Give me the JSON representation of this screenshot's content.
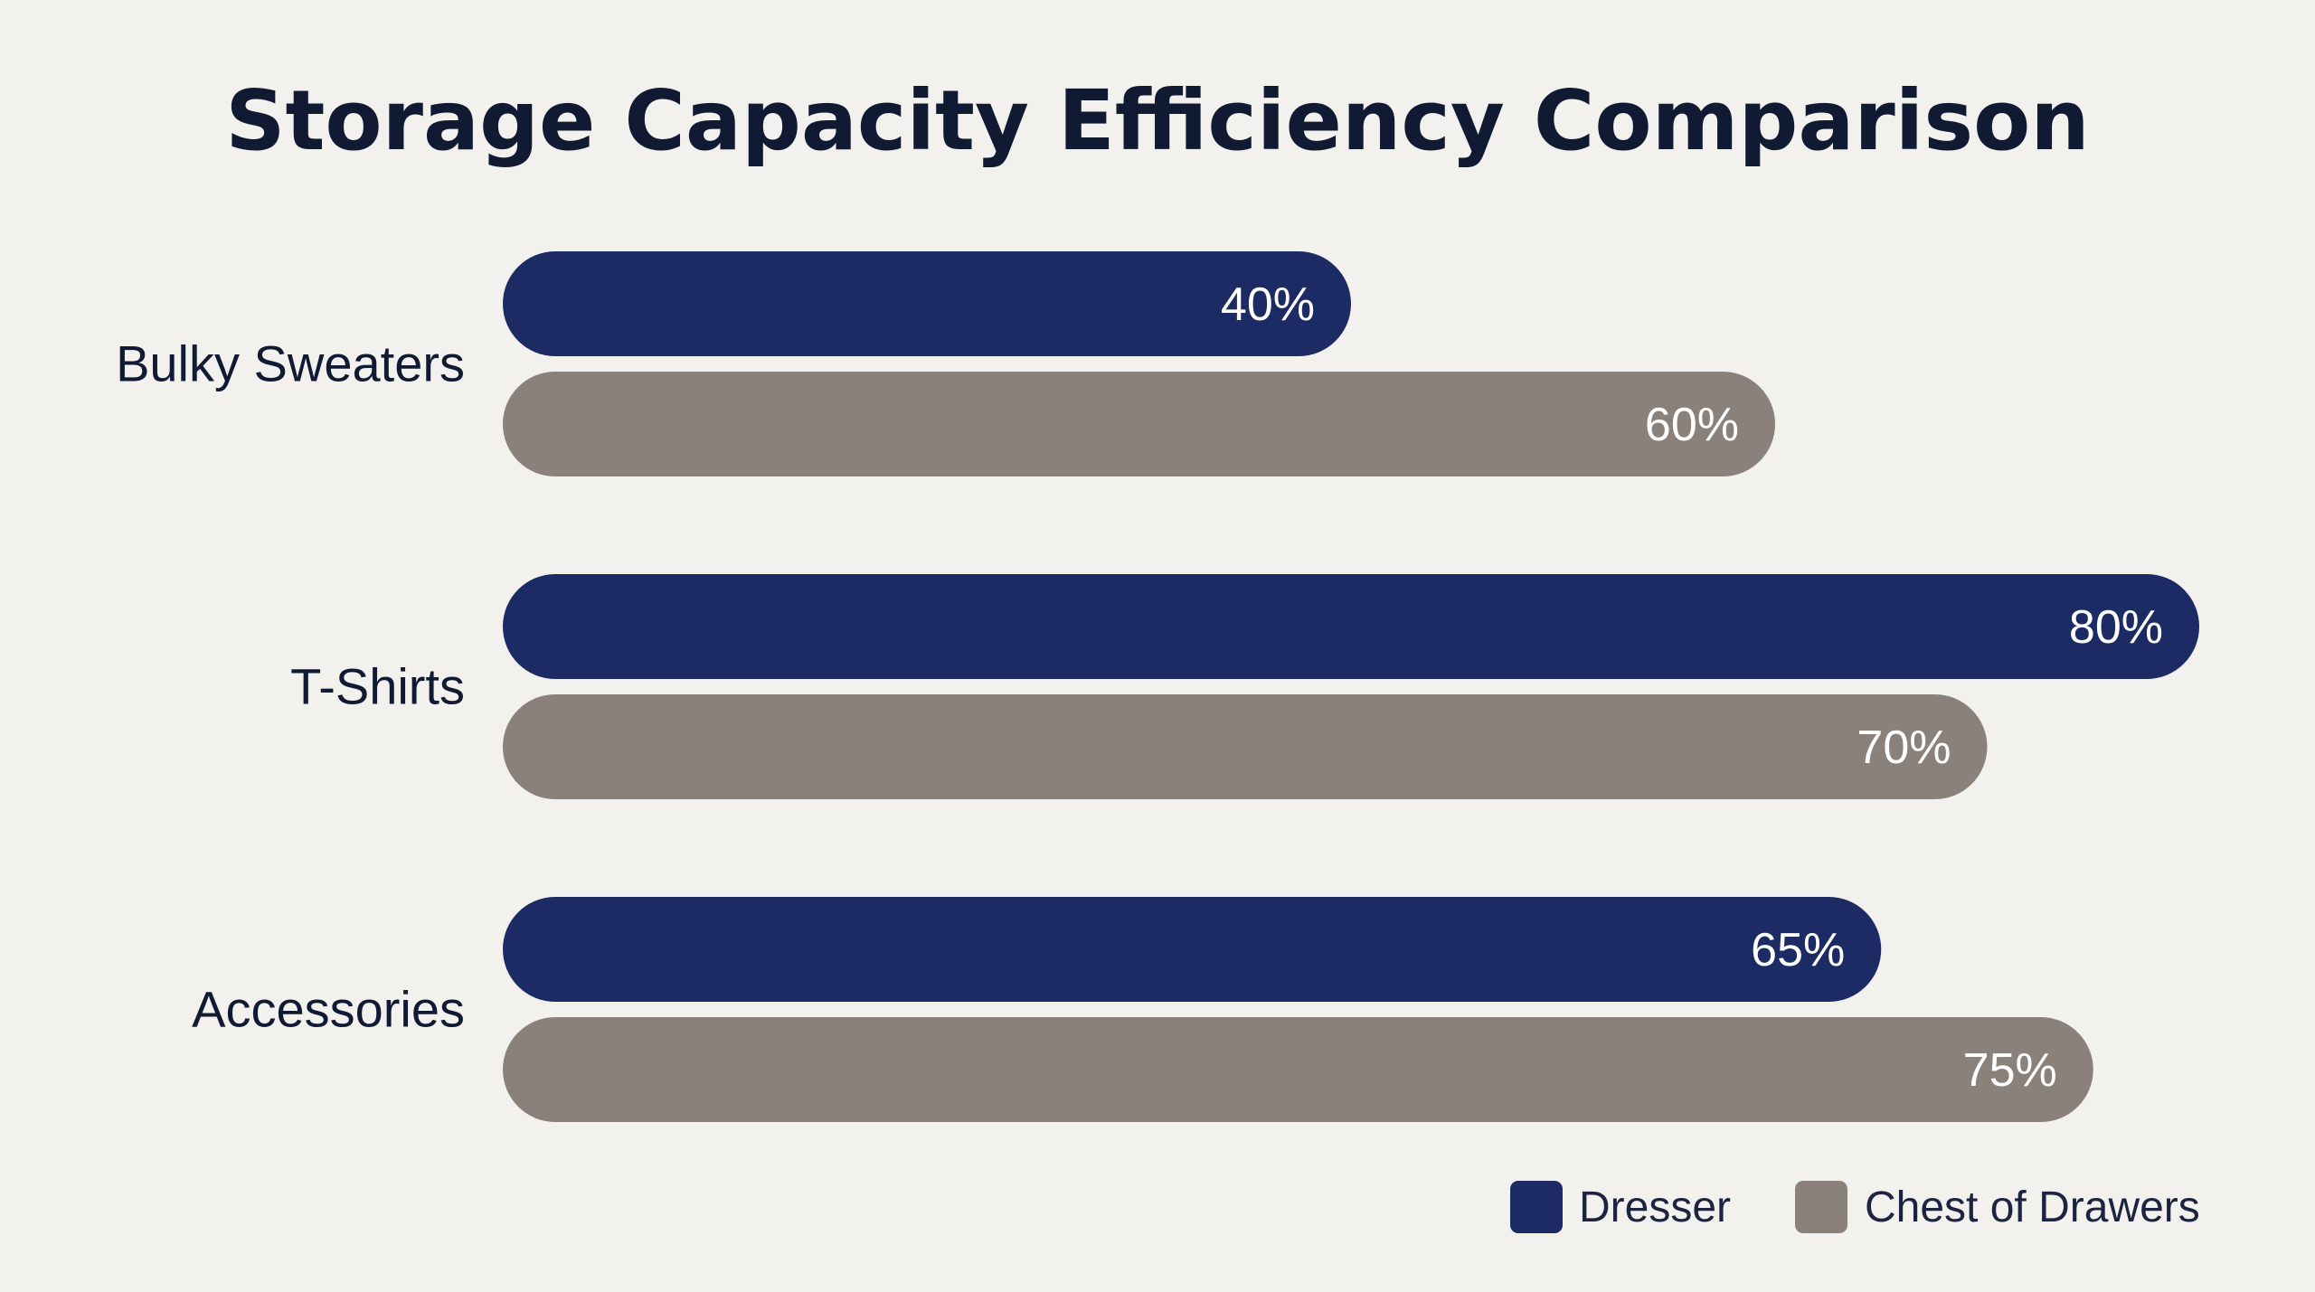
{
  "chart_data": {
    "type": "bar",
    "orientation": "horizontal",
    "title": "Storage Capacity Efficiency Comparison",
    "categories": [
      "Bulky Sweaters",
      "T-Shirts",
      "Accessories"
    ],
    "series": [
      {
        "name": "Dresser",
        "color": "#1c2b64",
        "values": [
          40,
          80,
          65
        ],
        "labels": [
          "40%",
          "80%",
          "65%"
        ]
      },
      {
        "name": "Chest of Drawers",
        "color": "#8a817a",
        "values": [
          60,
          70,
          75
        ],
        "labels": [
          "60%",
          "70%",
          "75%"
        ]
      }
    ],
    "value_unit": "%",
    "xlim": [
      0,
      80
    ],
    "grid": false,
    "legend_position": "bottom-right"
  }
}
